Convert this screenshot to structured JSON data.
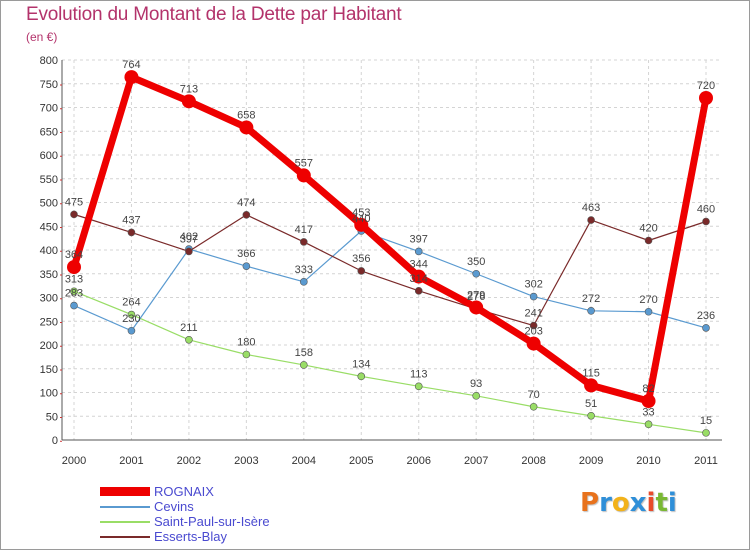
{
  "title": "Evolution du Montant de la Dette par Habitant",
  "unit": "(en €)",
  "logo": {
    "letters": [
      "P",
      "r",
      "o",
      "x",
      "i",
      "t",
      "i"
    ],
    "colors": [
      "#e8721c",
      "#2f8fd8",
      "#f2b21a",
      "#2f8fd8",
      "#e84b2a",
      "#7ab833",
      "#2f8fd8"
    ]
  },
  "chart_data": {
    "type": "line",
    "title": "Evolution du Montant de la Dette par Habitant",
    "ylabel": "(en €)",
    "ylim": [
      0,
      800
    ],
    "yticks": [
      0,
      50,
      100,
      150,
      200,
      250,
      300,
      350,
      400,
      450,
      500,
      550,
      600,
      650,
      700,
      750,
      800
    ],
    "grid": true,
    "legend_position": "bottom-left",
    "x": [
      "2000",
      "2001",
      "2002",
      "2003",
      "2004",
      "2005",
      "2006",
      "2007",
      "2008",
      "2009",
      "2010",
      "2011"
    ],
    "series": [
      {
        "name": "ROGNAIX",
        "color": "#ee0000",
        "values": [
          364,
          764,
          713,
          658,
          557,
          453,
          344,
          279,
          203,
          115,
          82,
          720
        ]
      },
      {
        "name": "Cevins",
        "color": "#5a9ad0",
        "values": [
          283,
          230,
          402,
          366,
          333,
          440,
          397,
          350,
          302,
          272,
          270,
          236
        ]
      },
      {
        "name": "Saint-Paul-sur-Isère",
        "color": "#99dd66",
        "values": [
          313,
          264,
          211,
          180,
          158,
          134,
          113,
          93,
          70,
          51,
          33,
          15
        ]
      },
      {
        "name": "Esserts-Blay",
        "color": "#7a2a2a",
        "values": [
          475,
          437,
          397,
          474,
          417,
          356,
          314,
          276,
          241,
          463,
          420,
          460
        ]
      }
    ]
  }
}
